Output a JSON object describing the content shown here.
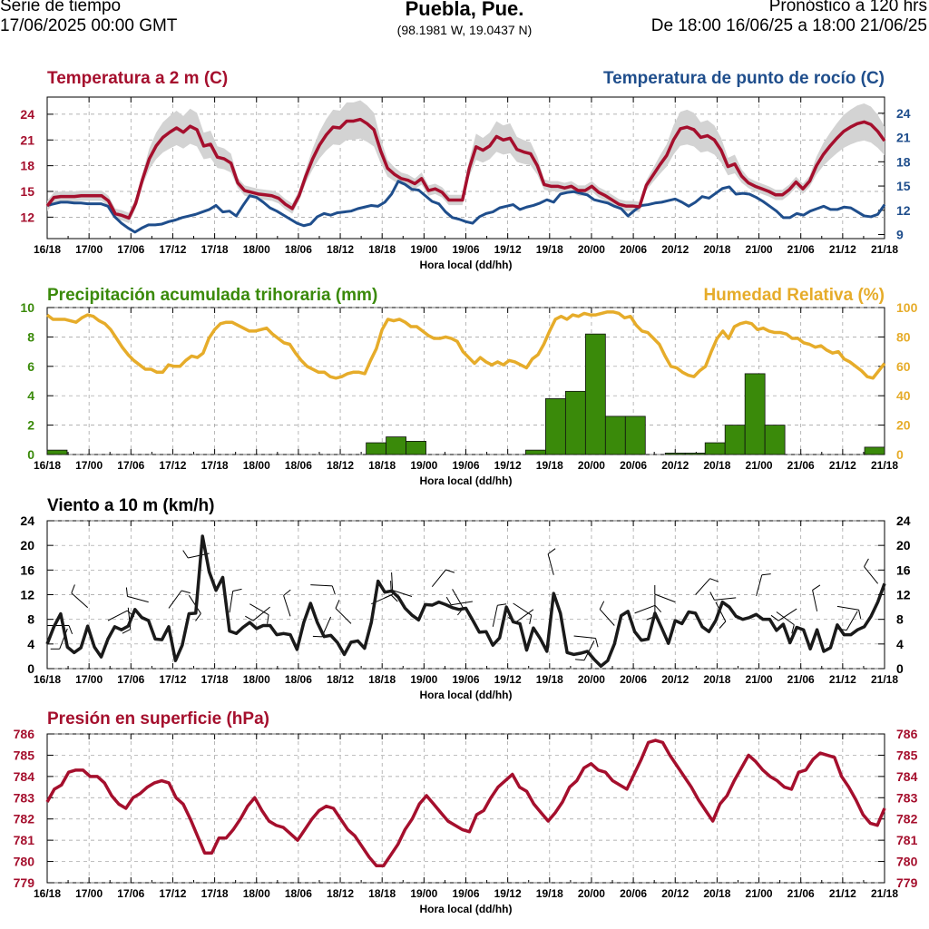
{
  "header": {
    "left_line1": "Serie de tiempo",
    "left_line2": "17/06/2025 00:00 GMT",
    "title": "Puebla, Pue.",
    "coords": "(98.1981 W, 19.0437 N)",
    "right_line1": "Pronóstico a 120 hrs",
    "right_line2": "De 18:00 16/06/25 a 18:00 21/06/25"
  },
  "chart_data": [
    {
      "type": "line",
      "title_left": "Temperatura a 2 m (C)",
      "title_right": "Temperatura de punto de rocío (C)",
      "xlabel": "Hora local (dd/hh)",
      "xticks": [
        "16/18",
        "17/00",
        "17/06",
        "17/12",
        "17/18",
        "18/00",
        "18/06",
        "18/12",
        "18/18",
        "19/00",
        "19/06",
        "19/12",
        "19/18",
        "20/00",
        "20/06",
        "20/12",
        "20/18",
        "21/00",
        "21/06",
        "21/12",
        "21/18"
      ],
      "ylim_left": [
        9.5,
        26
      ],
      "yticks_left": [
        12,
        15,
        18,
        21,
        24
      ],
      "ylim_right": [
        8.5,
        26
      ],
      "yticks_right": [
        9,
        12,
        15,
        18,
        21,
        24
      ],
      "colors": {
        "temp": "#a50f2d",
        "dew": "#1f4e8c",
        "band": "#d3d3d3"
      },
      "series": [
        {
          "name": "Temperatura a 2 m",
          "axis": "left",
          "values": [
            13.3,
            14.3,
            14.4,
            14.4,
            14.4,
            14.5,
            14.5,
            14.5,
            14.5,
            13.9,
            12.4,
            12.2,
            11.9,
            13.6,
            16.4,
            18.8,
            20.3,
            21.3,
            21.9,
            22.4,
            21.9,
            22.6,
            22.2,
            20.3,
            20.5,
            19.0,
            18.8,
            18.3,
            16.0,
            15.1,
            14.9,
            14.7,
            14.6,
            14.5,
            14.2,
            13.5,
            13.0,
            14.5,
            16.8,
            18.8,
            20.4,
            21.6,
            22.5,
            22.4,
            23.2,
            23.2,
            23.4,
            22.9,
            22.2,
            19.7,
            17.7,
            17.0,
            16.5,
            16.3,
            15.9,
            16.5,
            15.1,
            15.3,
            14.9,
            14.0,
            14.0,
            14.0,
            17.7,
            20.2,
            19.8,
            20.3,
            21.4,
            21.0,
            21.2,
            19.9,
            19.6,
            19.4,
            18.0,
            15.8,
            15.6,
            15.6,
            15.4,
            15.6,
            15.1,
            15.1,
            15.6,
            14.9,
            14.5,
            14.0,
            13.5,
            13.3,
            13.3,
            13.2,
            15.7,
            16.9,
            18.1,
            19.2,
            21.0,
            22.3,
            22.5,
            22.2,
            21.3,
            21.5,
            21.0,
            19.8,
            17.9,
            18.2,
            16.8,
            16.0,
            15.6,
            15.3,
            15.0,
            14.6,
            14.6,
            15.2,
            16.1,
            15.3,
            16.2,
            18.0,
            19.3,
            20.3,
            21.2,
            22.0,
            22.5,
            22.9,
            23.1,
            22.8,
            22.0,
            20.9
          ]
        },
        {
          "name": "Temperatura de punto de rocío",
          "axis": "right",
          "values": [
            12.6,
            12.8,
            13.0,
            13.0,
            12.9,
            12.9,
            12.8,
            12.8,
            12.8,
            12.5,
            11.2,
            10.4,
            9.8,
            9.3,
            9.8,
            10.2,
            10.2,
            10.3,
            10.6,
            10.8,
            11.1,
            11.3,
            11.5,
            11.8,
            12.1,
            12.6,
            11.8,
            11.9,
            11.3,
            12.6,
            13.8,
            13.6,
            13.0,
            12.3,
            11.9,
            11.4,
            10.9,
            10.4,
            10.1,
            10.3,
            11.2,
            11.6,
            11.4,
            11.7,
            11.8,
            11.9,
            12.2,
            12.4,
            12.6,
            12.5,
            13.0,
            14.0,
            15.6,
            15.2,
            14.6,
            14.5,
            13.8,
            13.1,
            12.8,
            11.8,
            11.1,
            10.9,
            10.6,
            10.4,
            11.2,
            11.6,
            11.8,
            12.3,
            12.5,
            12.7,
            12.1,
            12.4,
            12.6,
            12.9,
            13.3,
            13.0,
            14.0,
            14.2,
            14.3,
            14.1,
            13.9,
            13.3,
            13.1,
            12.9,
            12.5,
            12.2,
            11.3,
            12.0,
            12.6,
            12.7,
            12.9,
            13.0,
            13.2,
            13.4,
            13.0,
            12.5,
            13.0,
            13.7,
            13.5,
            14.1,
            14.7,
            14.9,
            14.0,
            14.1,
            14.0,
            13.6,
            13.1,
            12.5,
            11.9,
            11.1,
            11.1,
            11.6,
            11.4,
            11.9,
            12.2,
            12.5,
            12.1,
            12.1,
            12.4,
            12.3,
            11.8,
            11.3,
            11.2,
            11.5,
            12.7
          ]
        }
      ]
    },
    {
      "type": "bar",
      "title_left": "Precipitación acumulada trihoraria (mm)",
      "title_right": "Humedad Relativa (%)",
      "xlabel": "Hora local (dd/hh)",
      "ylim_left": [
        0,
        10
      ],
      "yticks_left": [
        0,
        2,
        4,
        6,
        8,
        10
      ],
      "ylim_right": [
        0,
        100
      ],
      "yticks_right": [
        0,
        20,
        40,
        60,
        80,
        100
      ],
      "colors": {
        "precip": "#3a8a0a",
        "rh": "#e6ac2a"
      },
      "bar_series": {
        "name": "Precipitación acumulada trihoraria",
        "axis": "left",
        "values": [
          0.3,
          0,
          0,
          0,
          0,
          0,
          0,
          0,
          0,
          0,
          0,
          0,
          0,
          0,
          0,
          0,
          0.8,
          1.2,
          0.9,
          0,
          0,
          0,
          0,
          0,
          0.3,
          3.8,
          4.3,
          8.2,
          2.6,
          2.6,
          0,
          0.1,
          0.1,
          0.8,
          2.0,
          5.5,
          2.0,
          0,
          0,
          0,
          0,
          0.5
        ]
      },
      "line_series": {
        "name": "Humedad Relativa",
        "axis": "right",
        "values": [
          95,
          92,
          92,
          92,
          91,
          90,
          93,
          95,
          94,
          91,
          89,
          85,
          79,
          73,
          68,
          64,
          61,
          58,
          58,
          56,
          56,
          61,
          60,
          60,
          64,
          67,
          66,
          69,
          79,
          85,
          89,
          90,
          90,
          88,
          86,
          84,
          84,
          85,
          86,
          82,
          79,
          76,
          75,
          69,
          64,
          60,
          58,
          56,
          56,
          53,
          52,
          53,
          55,
          56,
          56,
          55,
          64,
          72,
          85,
          92,
          91,
          92,
          90,
          87,
          87,
          84,
          81,
          79,
          79,
          80,
          79,
          77,
          70,
          66,
          62,
          66,
          63,
          61,
          63,
          61,
          64,
          63,
          61,
          59,
          65,
          68,
          75,
          84,
          92,
          94,
          92,
          95,
          94,
          96,
          95,
          95,
          96,
          97,
          97,
          96,
          93,
          94,
          88,
          84,
          83,
          79,
          75,
          67,
          60,
          59,
          56,
          54,
          53,
          57,
          60,
          70,
          79,
          84,
          79,
          87,
          89,
          90,
          89,
          85,
          86,
          84,
          83,
          83,
          82,
          79,
          79,
          76,
          75,
          73,
          74,
          71,
          69,
          70,
          65,
          63,
          60,
          57,
          53,
          52,
          57,
          62
        ]
      }
    },
    {
      "type": "line",
      "title_left": "Viento a 10 m (km/h)",
      "xlabel": "Hora local (dd/hh)",
      "ylim": [
        0,
        24
      ],
      "yticks": [
        0,
        4,
        8,
        12,
        16,
        20,
        24
      ],
      "colors": {
        "wind": "#1a1a1a"
      },
      "series": [
        {
          "name": "Viento a 10 m",
          "values": [
            4.0,
            6.8,
            8.9,
            3.5,
            2.6,
            3.4,
            6.9,
            3.5,
            1.9,
            4.8,
            6.8,
            6.3,
            6.9,
            9.6,
            8.3,
            7.8,
            4.8,
            4.7,
            6.8,
            1.3,
            3.8,
            8.9,
            9.0,
            21.5,
            15.7,
            12.7,
            14.8,
            6.1,
            5.7,
            6.7,
            7.5,
            6.5,
            7.0,
            7.0,
            5.5,
            5.7,
            5.5,
            3.1,
            7.5,
            10.6,
            7.5,
            5.2,
            5.4,
            4.2,
            2.3,
            4.3,
            4.5,
            3.3,
            7.5,
            14.2,
            12.4,
            12.6,
            11.6,
            9.8,
            8.7,
            7.9,
            10.4,
            10.3,
            10.8,
            10.4,
            9.9,
            9.6,
            9.8,
            7.9,
            5.9,
            6.0,
            3.8,
            5.0,
            10.0,
            7.6,
            7.3,
            3.0,
            6.6,
            4.9,
            2.8,
            12.2,
            9.0,
            2.6,
            2.3,
            2.5,
            2.8,
            1.5,
            0.4,
            1.3,
            4.0,
            8.6,
            9.3,
            6.0,
            4.6,
            4.8,
            9.0,
            6.6,
            4.1,
            7.8,
            7.3,
            9.2,
            9.0,
            6.8,
            6.0,
            7.8,
            10.8,
            10.0,
            8.5,
            8.0,
            8.3,
            8.8,
            8.0,
            8.0,
            6.2,
            7.2,
            4.2,
            6.7,
            6.3,
            3.2,
            6.3,
            2.8,
            3.4,
            7.1,
            5.5,
            5.5,
            6.3,
            6.8,
            8.5,
            10.8,
            13.8
          ]
        }
      ]
    },
    {
      "type": "line",
      "title_left": "Presión en superficie (hPa)",
      "xlabel": "Hora local (dd/hh)",
      "ylim": [
        779,
        786
      ],
      "yticks": [
        779,
        780,
        781,
        782,
        783,
        784,
        785,
        786
      ],
      "colors": {
        "pressure": "#a50f2d"
      },
      "series": [
        {
          "name": "Presión en superficie",
          "values": [
            782.8,
            783.4,
            783.6,
            784.2,
            784.3,
            784.3,
            784.0,
            784.0,
            783.7,
            783.1,
            782.7,
            782.5,
            783.0,
            783.2,
            783.5,
            783.7,
            783.8,
            783.7,
            783.0,
            782.7,
            782.0,
            781.2,
            780.4,
            780.4,
            781.1,
            781.1,
            781.5,
            782.0,
            782.6,
            783.0,
            782.4,
            781.9,
            781.7,
            781.6,
            781.3,
            781.0,
            781.5,
            782.0,
            782.4,
            782.6,
            782.5,
            782.0,
            781.5,
            781.2,
            780.7,
            780.2,
            779.8,
            779.8,
            780.3,
            780.8,
            781.5,
            782.0,
            782.7,
            783.1,
            782.7,
            782.3,
            781.9,
            781.7,
            781.5,
            781.4,
            782.2,
            782.4,
            783.0,
            783.5,
            783.8,
            784.1,
            783.5,
            783.3,
            782.7,
            782.3,
            781.9,
            782.3,
            782.8,
            783.5,
            783.8,
            784.4,
            784.6,
            784.3,
            784.2,
            783.8,
            783.6,
            783.4,
            784.1,
            784.8,
            785.6,
            785.7,
            785.6,
            785.0,
            784.5,
            784.0,
            783.5,
            782.9,
            782.4,
            781.9,
            782.7,
            783.1,
            783.8,
            784.4,
            785.0,
            784.7,
            784.3,
            784.0,
            783.8,
            783.5,
            783.4,
            784.2,
            784.3,
            784.8,
            785.1,
            785.0,
            784.9,
            784.0,
            783.5,
            782.9,
            782.2,
            781.8,
            781.7,
            782.5
          ]
        }
      ]
    }
  ]
}
